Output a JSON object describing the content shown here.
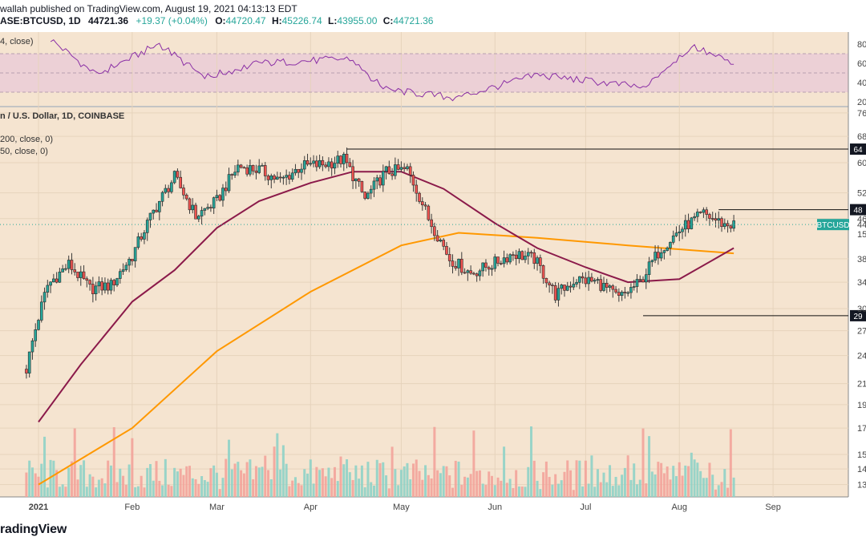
{
  "header": {
    "publisher": "wallah published on TradingView.com, August 19, 2021 04:13:13 EDT",
    "symbol": "ASE:BTCUSD, 1D",
    "last": "44721.36",
    "change": "+19.37 (+0.04%)",
    "o_label": "O:",
    "o": "44720.47",
    "h_label": "H:",
    "h": "45226.74",
    "l_label": "L:",
    "l": "43955.00",
    "c_label": "C:",
    "c": "44721.36"
  },
  "rsi_pane": {
    "legend": "4, close)",
    "axis_ticks": [
      "80",
      "60",
      "40",
      "20"
    ],
    "band_color": "#e8c8d8",
    "line_color": "#8a2ea5"
  },
  "price_pane": {
    "title": "n / U.S. Dollar, 1D, COINBASE",
    "legend_ma200": "200, close, 0)",
    "legend_ma50": "50, close, 0)",
    "axis_ticks": [
      "76",
      "68",
      "60",
      "52",
      "46",
      "38",
      "34",
      "30",
      "27",
      "24",
      "21",
      "19",
      "17",
      "15",
      "14",
      "13"
    ],
    "highlight_tags": [
      "64",
      "48",
      "29"
    ],
    "symbol_tag": "BTCUSD",
    "symbol_tag_values": [
      "44",
      "15"
    ],
    "ma50_color": "#8b1a4a",
    "ma200_color": "#ff9800",
    "up_color": "#26a69a",
    "down_color": "#ef5350",
    "bg_color": "#f5e4d0"
  },
  "time_axis": [
    "2021",
    "Feb",
    "Mar",
    "Apr",
    "May",
    "Jun",
    "Jul",
    "Aug",
    "Sep"
  ],
  "footer": {
    "brand": "radingView"
  },
  "chart_data": {
    "type": "candlestick",
    "title": "n / U.S. Dollar, 1D, COINBASE",
    "y_scale": "log",
    "ylim": [
      13000,
      78000
    ],
    "ranges": {
      "weekly_close_approx": [
        {
          "date": "2020-12-28",
          "close": 22500
        },
        {
          "date": "2021-01-04",
          "close": 33500
        },
        {
          "date": "2021-01-11",
          "close": 37000
        },
        {
          "date": "2021-01-18",
          "close": 33000
        },
        {
          "date": "2021-01-25",
          "close": 33500
        },
        {
          "date": "2021-02-01",
          "close": 38500
        },
        {
          "date": "2021-02-08",
          "close": 47500
        },
        {
          "date": "2021-02-15",
          "close": 56000
        },
        {
          "date": "2021-02-22",
          "close": 46500
        },
        {
          "date": "2021-03-01",
          "close": 50000
        },
        {
          "date": "2021-03-08",
          "close": 59000
        },
        {
          "date": "2021-03-15",
          "close": 58000
        },
        {
          "date": "2021-03-22",
          "close": 55000
        },
        {
          "date": "2021-03-29",
          "close": 59000
        },
        {
          "date": "2021-04-05",
          "close": 59500
        },
        {
          "date": "2021-04-12",
          "close": 61000
        },
        {
          "date": "2021-04-19",
          "close": 50500
        },
        {
          "date": "2021-04-26",
          "close": 57500
        },
        {
          "date": "2021-05-03",
          "close": 58000
        },
        {
          "date": "2021-05-10",
          "close": 46000
        },
        {
          "date": "2021-05-17",
          "close": 38000
        },
        {
          "date": "2021-05-24",
          "close": 35500
        },
        {
          "date": "2021-05-31",
          "close": 37000
        },
        {
          "date": "2021-06-07",
          "close": 39000
        },
        {
          "date": "2021-06-14",
          "close": 38000
        },
        {
          "date": "2021-06-21",
          "close": 32000
        },
        {
          "date": "2021-06-28",
          "close": 34500
        },
        {
          "date": "2021-07-05",
          "close": 34000
        },
        {
          "date": "2021-07-12",
          "close": 31500
        },
        {
          "date": "2021-07-19",
          "close": 34000
        },
        {
          "date": "2021-07-26",
          "close": 40000
        },
        {
          "date": "2021-08-02",
          "close": 44000
        },
        {
          "date": "2021-08-09",
          "close": 47000
        },
        {
          "date": "2021-08-16",
          "close": 44700
        }
      ]
    },
    "levels": [
      64000,
      48000,
      29000
    ],
    "ma50_approx": [
      {
        "date": "2021-01-01",
        "v": 17500
      },
      {
        "date": "2021-01-15",
        "v": 23000
      },
      {
        "date": "2021-02-01",
        "v": 31000
      },
      {
        "date": "2021-02-15",
        "v": 36000
      },
      {
        "date": "2021-03-01",
        "v": 44000
      },
      {
        "date": "2021-03-15",
        "v": 50000
      },
      {
        "date": "2021-04-01",
        "v": 54500
      },
      {
        "date": "2021-04-15",
        "v": 57500
      },
      {
        "date": "2021-05-01",
        "v": 57500
      },
      {
        "date": "2021-05-15",
        "v": 53000
      },
      {
        "date": "2021-06-01",
        "v": 45000
      },
      {
        "date": "2021-06-15",
        "v": 40000
      },
      {
        "date": "2021-07-01",
        "v": 36500
      },
      {
        "date": "2021-07-15",
        "v": 34000
      },
      {
        "date": "2021-08-01",
        "v": 34500
      },
      {
        "date": "2021-08-19",
        "v": 40000
      }
    ],
    "ma200_approx": [
      {
        "date": "2021-01-01",
        "v": 13000
      },
      {
        "date": "2021-02-01",
        "v": 17000
      },
      {
        "date": "2021-03-01",
        "v": 24500
      },
      {
        "date": "2021-04-01",
        "v": 32500
      },
      {
        "date": "2021-05-01",
        "v": 40500
      },
      {
        "date": "2021-05-20",
        "v": 43000
      },
      {
        "date": "2021-06-15",
        "v": 42000
      },
      {
        "date": "2021-07-15",
        "v": 40500
      },
      {
        "date": "2021-08-19",
        "v": 39000
      }
    ],
    "rsi_approx": [
      {
        "date": "2021-01-05",
        "v": 85
      },
      {
        "date": "2021-01-20",
        "v": 48
      },
      {
        "date": "2021-02-10",
        "v": 80
      },
      {
        "date": "2021-02-25",
        "v": 45
      },
      {
        "date": "2021-03-15",
        "v": 60
      },
      {
        "date": "2021-04-15",
        "v": 65
      },
      {
        "date": "2021-04-25",
        "v": 33
      },
      {
        "date": "2021-05-19",
        "v": 24
      },
      {
        "date": "2021-06-15",
        "v": 48
      },
      {
        "date": "2021-07-20",
        "v": 35
      },
      {
        "date": "2021-08-05",
        "v": 78
      },
      {
        "date": "2021-08-19",
        "v": 59
      }
    ]
  }
}
